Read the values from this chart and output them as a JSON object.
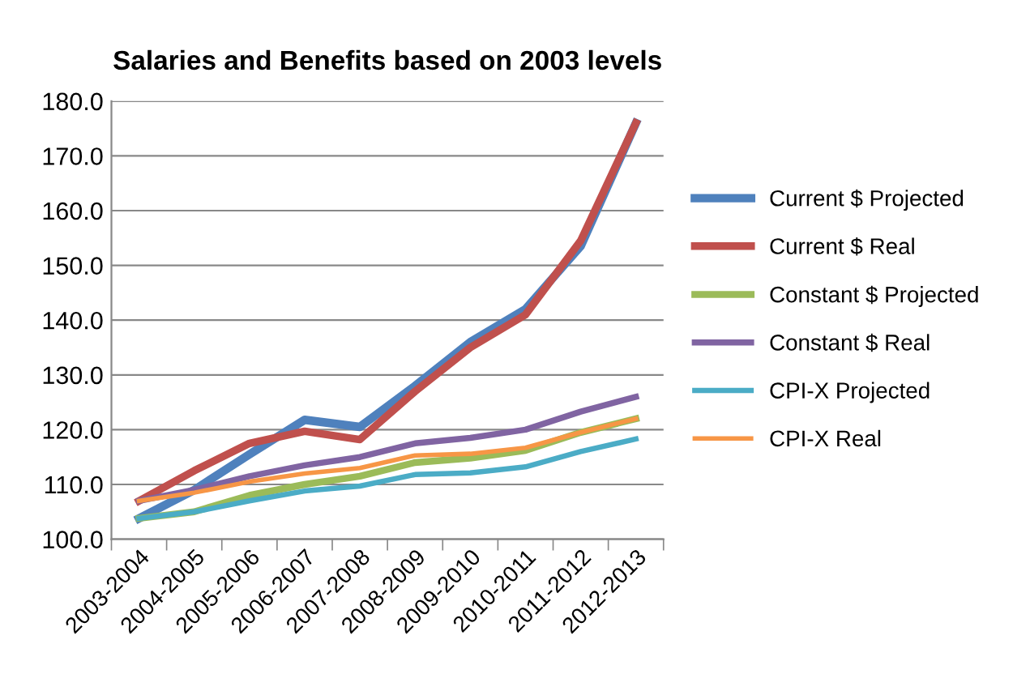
{
  "chart_data": {
    "type": "line",
    "title": "Salaries and Benefits based on 2003 levels",
    "categories": [
      "2003-2004",
      "2004-2005",
      "2005-2006",
      "2006-2007",
      "2007-2008",
      "2008-2009",
      "2009-2010",
      "2010-2011",
      "2011-2012",
      "2012-2013"
    ],
    "series": [
      {
        "name": "Current $ Projected",
        "color": "#4f81bd",
        "values": [
          103.8,
          109,
          115.5,
          121.8,
          120.5,
          128,
          136,
          142,
          153.5,
          176
        ]
      },
      {
        "name": "Current $ Real",
        "color": "#c0504d",
        "values": [
          107,
          112.5,
          117.5,
          119.7,
          118.2,
          127,
          135,
          141,
          154.5,
          176
        ]
      },
      {
        "name": "Constant $ Projected",
        "color": "#9bbb59",
        "values": [
          103.8,
          105,
          108,
          110,
          111.5,
          114,
          114.8,
          116.2,
          119.5,
          122
        ]
      },
      {
        "name": "Constant $ Real",
        "color": "#8064a2",
        "values": [
          107,
          109,
          111.5,
          113.5,
          115,
          117.5,
          118.5,
          120,
          123.3,
          126
        ]
      },
      {
        "name": "CPI-X Projected",
        "color": "#4bacc6",
        "values": [
          103.8,
          105,
          107,
          108.8,
          109.7,
          111.8,
          112.1,
          113.2,
          116,
          118.3
        ]
      },
      {
        "name": "CPI-X Real",
        "color": "#f79646",
        "values": [
          107,
          108.5,
          110.5,
          112,
          113,
          115.3,
          115.6,
          116.7,
          119.5,
          122
        ]
      }
    ],
    "ylim": [
      100,
      180
    ],
    "yticks": [
      {
        "value": 100,
        "label": "100.0"
      },
      {
        "value": 110,
        "label": "110.0"
      },
      {
        "value": 120,
        "label": "120.0"
      },
      {
        "value": 130,
        "label": "130.0"
      },
      {
        "value": 140,
        "label": "140.0"
      },
      {
        "value": 150,
        "label": "150.0"
      },
      {
        "value": 160,
        "label": "160.0"
      },
      {
        "value": 170,
        "label": "170.0"
      },
      {
        "value": 180,
        "label": "180.0"
      }
    ],
    "grid": "y",
    "legend": "right",
    "marker": "none",
    "line_style": "solid"
  }
}
